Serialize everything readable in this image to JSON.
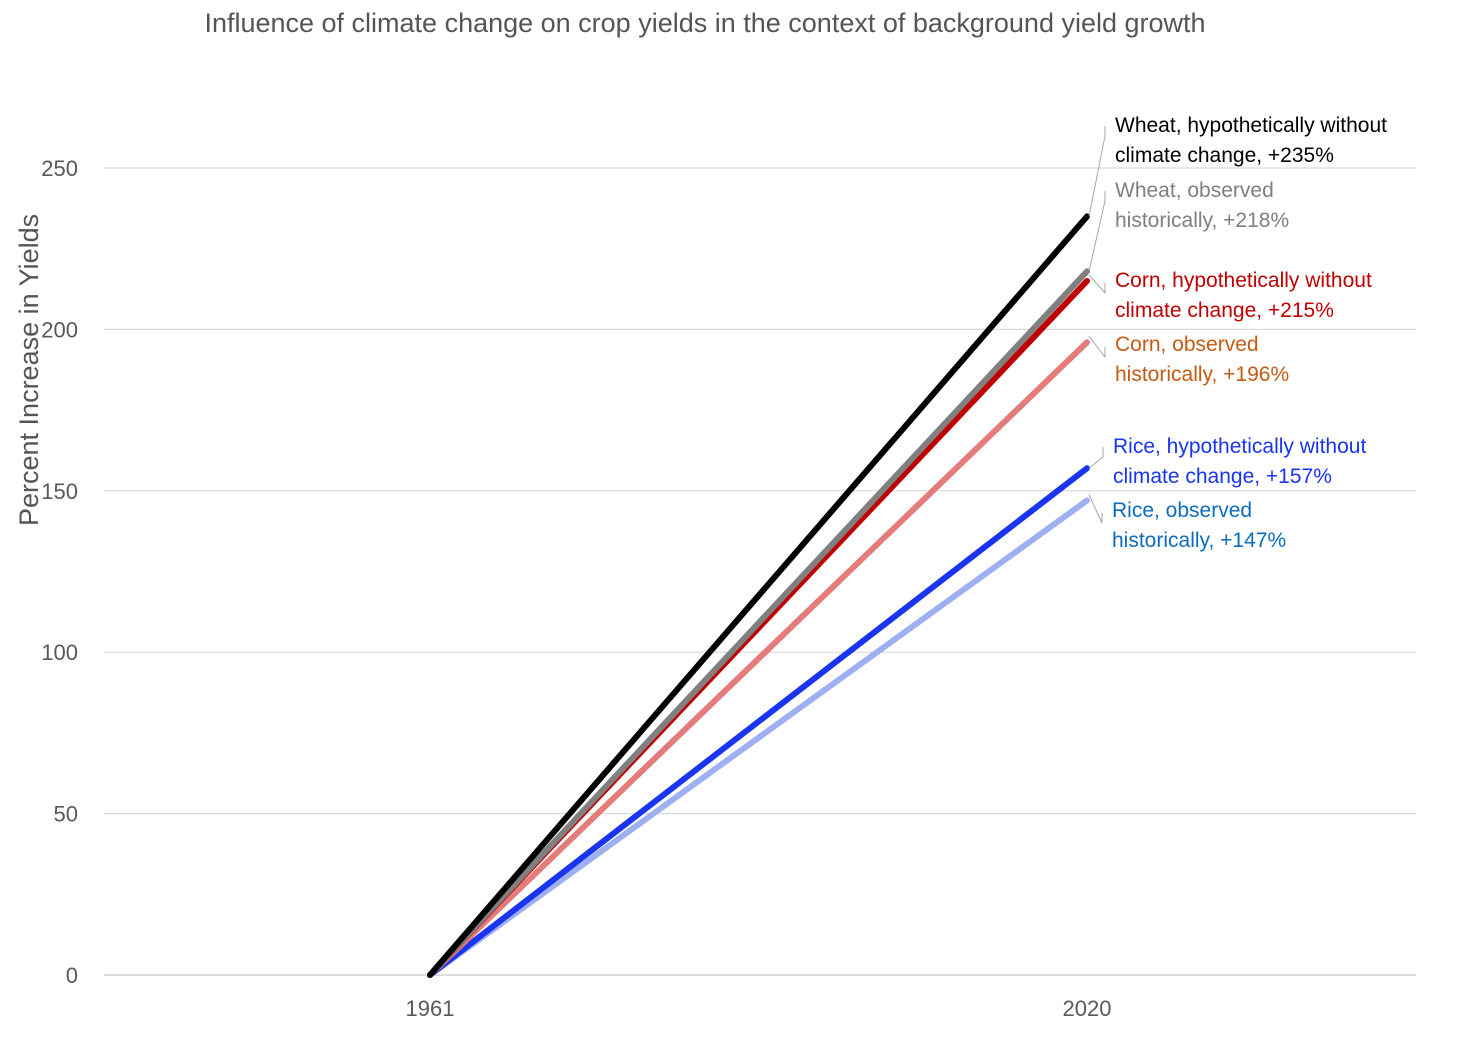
{
  "chart_data": {
    "type": "line",
    "title": "Influence of climate change on crop yields in the context of background yield growth",
    "xlabel": "",
    "ylabel": "Percent Increase in Yields",
    "categories": [
      "1961",
      "2020"
    ],
    "ylim": [
      0,
      250
    ],
    "yticks": [
      0,
      50,
      100,
      150,
      200,
      250
    ],
    "grid": true,
    "series": [
      {
        "name": "Wheat, hypothetically without climate change, +235%",
        "values": [
          0,
          235
        ],
        "color": "#000000",
        "label_lines": [
          "Wheat, hypothetically without",
          "climate change, +235%"
        ],
        "label_color": "#000000"
      },
      {
        "name": "Wheat, observed historically, +218%",
        "values": [
          0,
          218
        ],
        "color": "#808080",
        "label_lines": [
          "Wheat, observed",
          "historically, +218%"
        ],
        "label_color": "#7f7f7f"
      },
      {
        "name": "Corn, hypothetically without climate change, +215%",
        "values": [
          0,
          215
        ],
        "color": "#c00000",
        "label_lines": [
          "Corn, hypothetically without",
          "climate change, +215%"
        ],
        "label_color": "#c00000"
      },
      {
        "name": "Corn,  observed historically, +196%",
        "values": [
          0,
          196
        ],
        "color": "#e47c7c",
        "label_lines": [
          "Corn,  observed",
          "historically, +196%"
        ],
        "label_color": "#c55a11"
      },
      {
        "name": "Rice, hypothetically without climate change, +157%",
        "values": [
          0,
          157
        ],
        "color": "#1a35f0",
        "label_lines": [
          "Rice, hypothetically without",
          "climate change, +157%"
        ],
        "label_color": "#1a35f0"
      },
      {
        "name": "Rice, observed historically, +147%",
        "values": [
          0,
          147
        ],
        "color": "#9fb0f2",
        "label_lines": [
          "Rice, observed",
          "historically, +147%"
        ],
        "label_color": "#0d6cbf"
      }
    ]
  }
}
